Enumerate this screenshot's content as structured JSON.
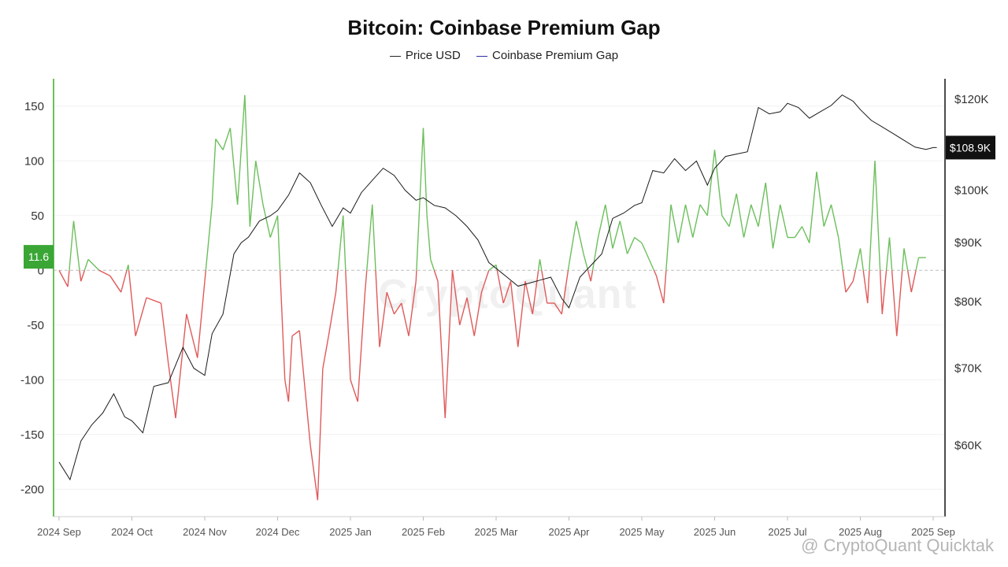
{
  "title": "Bitcoin: Coinbase Premium Gap",
  "legend": [
    {
      "label": "Price USD",
      "color": "#222222"
    },
    {
      "label": "Coinbase Premium Gap",
      "color": "#2f2faa"
    }
  ],
  "watermarks": {
    "center": "CryptoQuant",
    "bottom": "@ CryptoQuant Quicktak"
  },
  "chart_data": {
    "type": "line",
    "title": "Bitcoin: Coinbase Premium Gap",
    "x_tick_labels": [
      "2024 Sep",
      "2024 Oct",
      "2024 Nov",
      "2024 Dec",
      "2025 Jan",
      "2025 Feb",
      "2025 Mar",
      "2025 Apr",
      "2025 May",
      "2025 Jun",
      "2025 Jul",
      "2025 Aug",
      "2025 Sep"
    ],
    "left_axis": {
      "ticks": [
        150,
        100,
        50,
        0,
        -50,
        -100,
        -150,
        -200
      ],
      "range": [
        -225,
        175
      ]
    },
    "right_axis": {
      "ticks": [
        "$120K",
        "$100K",
        "$90K",
        "$80K",
        "$70K",
        "$60K"
      ],
      "tick_values": [
        120000,
        100000,
        90000,
        80000,
        70000,
        60000
      ],
      "scale": "log",
      "range": [
        52000,
        125000
      ]
    },
    "premium_positive_color": "#6cbf5c",
    "premium_negative_color": "#e05a5a",
    "current_premium_label": "11.6",
    "current_price_label": "$108.9K",
    "series": [
      {
        "name": "Coinbase Premium Gap",
        "month_index": [
          0,
          0.12,
          0.2,
          0.3,
          0.4,
          0.55,
          0.7,
          0.85,
          0.95,
          1.05,
          1.2,
          1.4,
          1.5,
          1.6,
          1.75,
          1.9,
          2.0,
          2.1,
          2.15,
          2.25,
          2.35,
          2.45,
          2.55,
          2.62,
          2.7,
          2.8,
          2.9,
          3.0,
          3.1,
          3.15,
          3.2,
          3.3,
          3.45,
          3.55,
          3.62,
          3.7,
          3.8,
          3.9,
          4.0,
          4.1,
          4.2,
          4.3,
          4.4,
          4.5,
          4.6,
          4.7,
          4.8,
          4.9,
          5.0,
          5.05,
          5.1,
          5.2,
          5.3,
          5.4,
          5.5,
          5.6,
          5.7,
          5.8,
          5.9,
          6.0,
          6.1,
          6.2,
          6.3,
          6.4,
          6.5,
          6.6,
          6.7,
          6.8,
          6.9,
          7.0,
          7.1,
          7.2,
          7.3,
          7.4,
          7.5,
          7.6,
          7.7,
          7.8,
          7.9,
          8.0,
          8.1,
          8.2,
          8.3,
          8.4,
          8.5,
          8.6,
          8.7,
          8.8,
          8.9,
          9.0,
          9.1,
          9.2,
          9.3,
          9.4,
          9.5,
          9.6,
          9.7,
          9.8,
          9.9,
          10.0,
          10.1,
          10.2,
          10.3,
          10.4,
          10.5,
          10.6,
          10.7,
          10.8,
          10.9,
          11.0,
          11.1,
          11.2,
          11.3,
          11.4,
          11.5,
          11.6,
          11.7,
          11.8,
          11.9,
          12.0,
          12.08
        ],
        "values": [
          0,
          -15,
          45,
          -10,
          10,
          0,
          -5,
          -20,
          5,
          -60,
          -25,
          -30,
          -85,
          -135,
          -40,
          -80,
          -10,
          60,
          120,
          110,
          130,
          60,
          160,
          40,
          100,
          60,
          30,
          50,
          -100,
          -120,
          -60,
          -55,
          -160,
          -210,
          -90,
          -60,
          -20,
          50,
          -100,
          -120,
          -20,
          60,
          -70,
          -20,
          -40,
          -30,
          -60,
          -10,
          130,
          50,
          10,
          -10,
          -135,
          0,
          -50,
          -25,
          -60,
          -20,
          0,
          5,
          -30,
          -10,
          -70,
          -10,
          -40,
          10,
          -30,
          -30,
          -40,
          5,
          45,
          15,
          -10,
          30,
          60,
          20,
          45,
          15,
          30,
          25,
          10,
          -5,
          -30,
          60,
          25,
          60,
          30,
          60,
          50,
          110,
          50,
          40,
          70,
          30,
          60,
          40,
          80,
          20,
          60,
          30,
          30,
          40,
          25,
          90,
          40,
          60,
          30,
          -20,
          -10,
          20,
          -30,
          100,
          -40,
          30,
          -60,
          20,
          -20,
          11.6,
          11.6
        ]
      },
      {
        "name": "Price USD",
        "month_index": [
          0,
          0.15,
          0.3,
          0.45,
          0.6,
          0.75,
          0.9,
          1.0,
          1.15,
          1.3,
          1.5,
          1.7,
          1.85,
          2.0,
          2.1,
          2.25,
          2.4,
          2.5,
          2.6,
          2.75,
          2.9,
          3.0,
          3.15,
          3.3,
          3.45,
          3.6,
          3.75,
          3.9,
          4.0,
          4.15,
          4.3,
          4.45,
          4.6,
          4.75,
          4.9,
          5.0,
          5.15,
          5.3,
          5.45,
          5.6,
          5.75,
          5.9,
          6.0,
          6.15,
          6.3,
          6.45,
          6.6,
          6.75,
          6.9,
          7.0,
          7.15,
          7.3,
          7.45,
          7.6,
          7.75,
          7.9,
          8.0,
          8.15,
          8.3,
          8.45,
          8.6,
          8.75,
          8.9,
          9.0,
          9.15,
          9.3,
          9.45,
          9.6,
          9.75,
          9.9,
          10.0,
          10.15,
          10.3,
          10.45,
          10.6,
          10.75,
          10.9,
          11.0,
          11.15,
          11.3,
          11.45,
          11.6,
          11.75,
          11.9,
          12.0,
          12.05
        ],
        "values": [
          58000,
          56000,
          60500,
          62500,
          64000,
          66500,
          63500,
          63000,
          61500,
          67500,
          68000,
          73000,
          70000,
          69000,
          75000,
          78000,
          88000,
          90000,
          91000,
          94000,
          95000,
          96000,
          99000,
          103500,
          101500,
          97000,
          93000,
          96500,
          95500,
          99500,
          102000,
          104500,
          103000,
          100000,
          98000,
          98500,
          97000,
          96500,
          95000,
          93000,
          90500,
          86500,
          85500,
          84000,
          82500,
          83000,
          83500,
          84000,
          80500,
          79000,
          84000,
          86000,
          88000,
          94500,
          95500,
          97000,
          97500,
          104000,
          103500,
          106500,
          104000,
          106000,
          101000,
          104500,
          107000,
          107500,
          108000,
          118000,
          116500,
          117000,
          119000,
          118000,
          115500,
          117000,
          118500,
          121000,
          119500,
          117500,
          115000,
          113500,
          112000,
          110500,
          109000,
          108500,
          108900,
          108900
        ]
      }
    ]
  }
}
